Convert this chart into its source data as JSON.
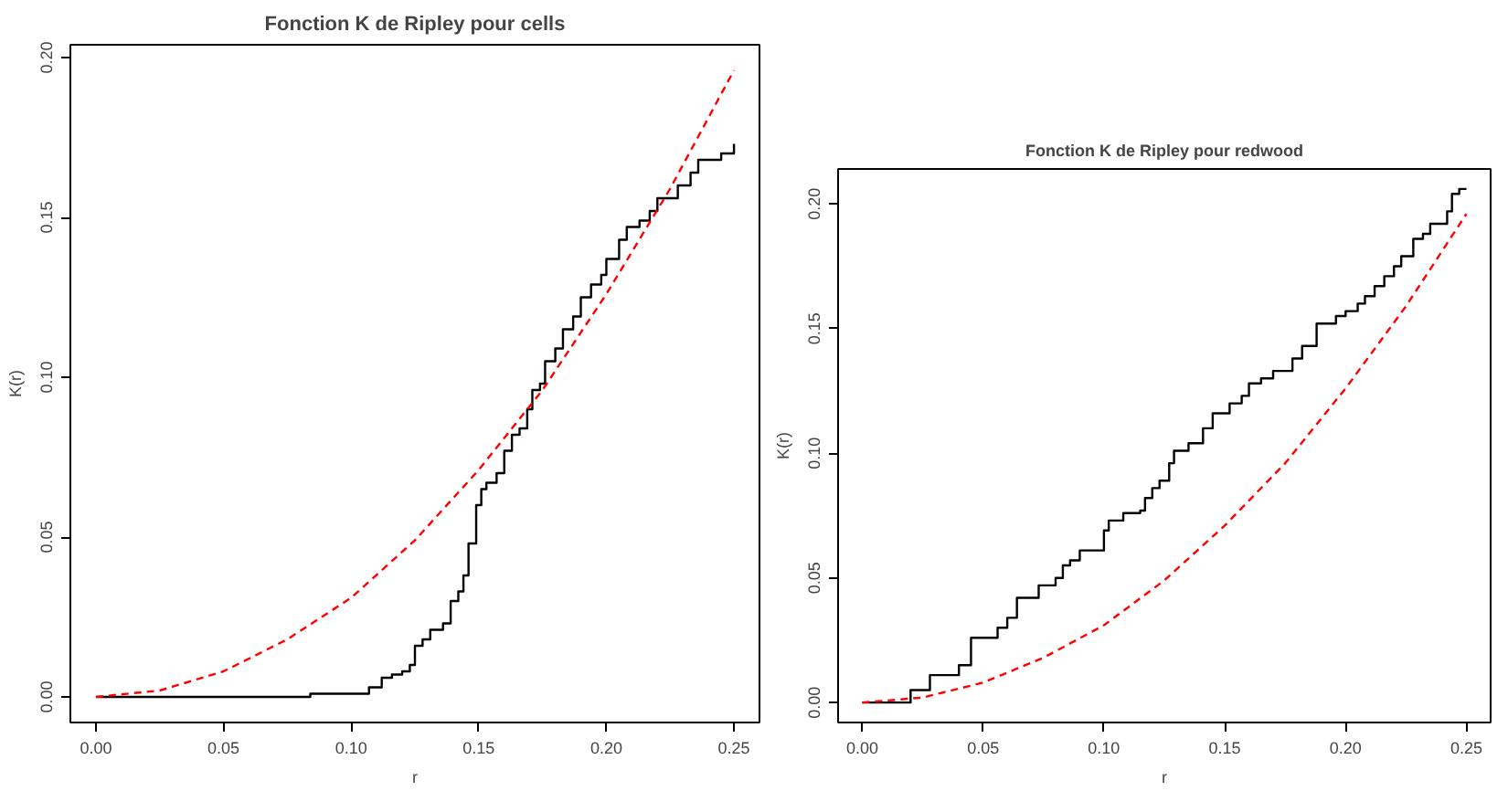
{
  "chart_data": [
    {
      "type": "step",
      "title": "Fonction K de Ripley pour cells",
      "xlabel": "r",
      "ylabel": "K(r)",
      "xlim": [
        -0.01,
        0.26
      ],
      "ylim": [
        -0.008,
        0.204
      ],
      "xticks": [
        {
          "value": 0,
          "label": "0.00"
        },
        0.05,
        {
          "value": 0.1,
          "label": "0.10"
        },
        0.15,
        {
          "value": 0.2,
          "label": "0.20"
        },
        0.25
      ],
      "yticks": [
        {
          "value": 0,
          "label": "0.00"
        },
        {
          "value": 0.05,
          "label": "0.05"
        },
        {
          "value": 0.1,
          "label": "0.10"
        },
        {
          "value": 0.15,
          "label": "0.15"
        },
        {
          "value": 0.2,
          "label": "0.20"
        }
      ],
      "grid": false,
      "series": [
        {
          "color": "#000000",
          "line_style": "solid",
          "x": [
            0,
            0.084,
            0.107,
            0.112,
            0.116,
            0.12,
            0.123,
            0.125,
            0.128,
            0.131,
            0.136,
            0.139,
            0.142,
            0.144,
            0.146,
            0.149,
            0.151,
            0.153,
            0.157,
            0.16,
            0.163,
            0.166,
            0.169,
            0.171,
            0.174,
            0.176,
            0.18,
            0.183,
            0.187,
            0.19,
            0.194,
            0.198,
            0.2,
            0.205,
            0.208,
            0.213,
            0.217,
            0.22,
            0.228,
            0.233,
            0.236,
            0.245,
            0.25
          ],
          "values": [
            0,
            0.001,
            0.003,
            0.006,
            0.007,
            0.008,
            0.01,
            0.016,
            0.018,
            0.021,
            0.023,
            0.03,
            0.033,
            0.038,
            0.048,
            0.06,
            0.065,
            0.067,
            0.07,
            0.077,
            0.082,
            0.084,
            0.09,
            0.096,
            0.098,
            0.105,
            0.109,
            0.115,
            0.119,
            0.125,
            0.129,
            0.132,
            0.137,
            0.143,
            0.147,
            0.149,
            0.152,
            0.156,
            0.16,
            0.164,
            0.168,
            0.17,
            0.173
          ]
        },
        {
          "type": "line",
          "color": "#ff0000",
          "line_style": "dashed",
          "x": [
            0,
            0.025,
            0.05,
            0.075,
            0.1,
            0.125,
            0.15,
            0.175,
            0.2,
            0.225,
            0.25
          ],
          "values": [
            0,
            0.002,
            0.008,
            0.018,
            0.031,
            0.049,
            0.071,
            0.096,
            0.126,
            0.159,
            0.196
          ]
        }
      ]
    },
    {
      "type": "step",
      "title": "Fonction K de Ripley pour redwood",
      "xlabel": "r",
      "ylabel": "K(r)",
      "xlim": [
        -0.01,
        0.26
      ],
      "ylim": [
        -0.008,
        0.214
      ],
      "xticks": [
        {
          "value": 0,
          "label": "0.00"
        },
        0.05,
        {
          "value": 0.1,
          "label": "0.10"
        },
        0.15,
        {
          "value": 0.2,
          "label": "0.20"
        },
        0.25
      ],
      "yticks": [
        {
          "value": 0,
          "label": "0.00"
        },
        {
          "value": 0.05,
          "label": "0.05"
        },
        {
          "value": 0.1,
          "label": "0.10"
        },
        {
          "value": 0.15,
          "label": "0.15"
        },
        {
          "value": 0.2,
          "label": "0.20"
        }
      ],
      "grid": false,
      "series": [
        {
          "color": "#000000",
          "line_style": "solid",
          "x": [
            0,
            0.02,
            0.028,
            0.04,
            0.045,
            0.056,
            0.06,
            0.064,
            0.073,
            0.08,
            0.083,
            0.086,
            0.09,
            0.1,
            0.102,
            0.108,
            0.115,
            0.117,
            0.12,
            0.123,
            0.127,
            0.129,
            0.135,
            0.141,
            0.145,
            0.152,
            0.157,
            0.16,
            0.165,
            0.17,
            0.178,
            0.182,
            0.188,
            0.196,
            0.2,
            0.205,
            0.208,
            0.212,
            0.216,
            0.22,
            0.223,
            0.228,
            0.232,
            0.235,
            0.242,
            0.244,
            0.247,
            0.25
          ],
          "values": [
            0,
            0.005,
            0.011,
            0.015,
            0.026,
            0.03,
            0.034,
            0.042,
            0.047,
            0.05,
            0.055,
            0.057,
            0.061,
            0.069,
            0.073,
            0.076,
            0.077,
            0.082,
            0.086,
            0.089,
            0.096,
            0.101,
            0.104,
            0.11,
            0.116,
            0.12,
            0.123,
            0.128,
            0.13,
            0.133,
            0.138,
            0.143,
            0.152,
            0.155,
            0.157,
            0.16,
            0.163,
            0.167,
            0.171,
            0.175,
            0.179,
            0.186,
            0.188,
            0.192,
            0.197,
            0.204,
            0.206,
            0.206
          ]
        },
        {
          "type": "line",
          "color": "#ff0000",
          "line_style": "dashed",
          "x": [
            0,
            0.025,
            0.05,
            0.075,
            0.1,
            0.125,
            0.15,
            0.175,
            0.2,
            0.225,
            0.25
          ],
          "values": [
            0,
            0.002,
            0.008,
            0.018,
            0.031,
            0.049,
            0.071,
            0.096,
            0.126,
            0.159,
            0.196
          ]
        }
      ]
    }
  ]
}
